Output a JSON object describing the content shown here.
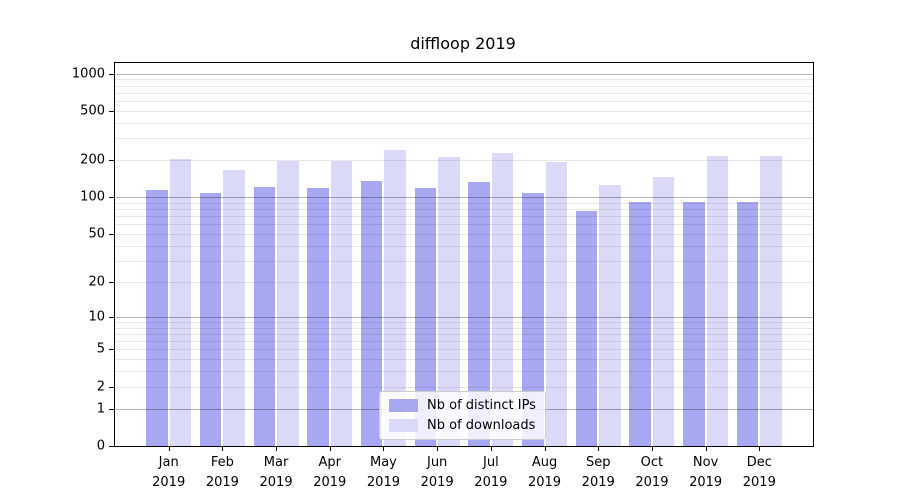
{
  "chart_data": {
    "type": "bar",
    "title": "diffloop 2019",
    "x_categories": [
      "Jan",
      "Feb",
      "Mar",
      "Apr",
      "May",
      "Jun",
      "Jul",
      "Aug",
      "Sep",
      "Oct",
      "Nov",
      "Dec"
    ],
    "x_year": "2019",
    "series": [
      {
        "name": "Nb of distinct IPs",
        "color": "#a8a8f2",
        "values": [
          115,
          109,
          122,
          119,
          136,
          118,
          133,
          108,
          78,
          91,
          92,
          91
        ]
      },
      {
        "name": "Nb of downloads",
        "color": "#dadaf8",
        "values": [
          204,
          168,
          198,
          199,
          244,
          212,
          230,
          194,
          127,
          146,
          218,
          218
        ]
      }
    ],
    "y_scale": "log1p",
    "y_max": 1220,
    "y_tick_values": [
      1000,
      500,
      200,
      100,
      50,
      20,
      10,
      5,
      2,
      1,
      0
    ],
    "y_tick_labels": [
      "1000",
      "500",
      "200",
      "100",
      "50",
      "20",
      "10",
      "5",
      "2",
      "1",
      "0"
    ],
    "grid_major_values": [
      1,
      10,
      100,
      1000
    ],
    "grid_minor_values": [
      2,
      3,
      4,
      5,
      6,
      7,
      8,
      9,
      20,
      30,
      40,
      50,
      60,
      70,
      80,
      90,
      200,
      300,
      400,
      500,
      600,
      700,
      800,
      900
    ],
    "grid_major_color": "rgba(0,0,0,0.30)",
    "grid_minor_color": "rgba(0,0,0,0.09)",
    "legend_position": "lower center",
    "xlabel": "",
    "ylabel": ""
  }
}
